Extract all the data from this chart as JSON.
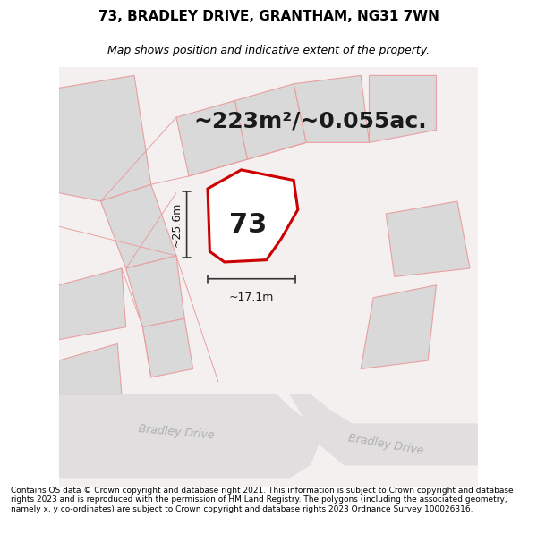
{
  "title": "73, BRADLEY DRIVE, GRANTHAM, NG31 7WN",
  "subtitle": "Map shows position and indicative extent of the property.",
  "area_label": "~223m²/~0.055ac.",
  "plot_number": "73",
  "dim_width": "~17.1m",
  "dim_height": "~25.6m",
  "road_label_left": "Bradley Drive",
  "road_label_right": "Bradley Drive",
  "footer": "Contains OS data © Crown copyright and database right 2021. This information is subject to Crown copyright and database rights 2023 and is reproduced with the permission of HM Land Registry. The polygons (including the associated geometry, namely x, y co-ordinates) are subject to Crown copyright and database rights 2023 Ordnance Survey 100026316.",
  "bg_color": "#ffffff",
  "map_bg": "#f5f0f0",
  "building_fill": "#d9d9d9",
  "building_stroke": "#e8a0a0",
  "plot_fill": "#ffffff",
  "plot_stroke": "#cc0000",
  "road_fill": "#e8e8e8",
  "road_label_color": "#b0b0b0",
  "dim_line_color": "#333333",
  "title_fontsize": 11,
  "subtitle_fontsize": 9,
  "area_fontsize": 18,
  "plot_label_fontsize": 22,
  "dim_fontsize": 9,
  "footer_fontsize": 6.5
}
